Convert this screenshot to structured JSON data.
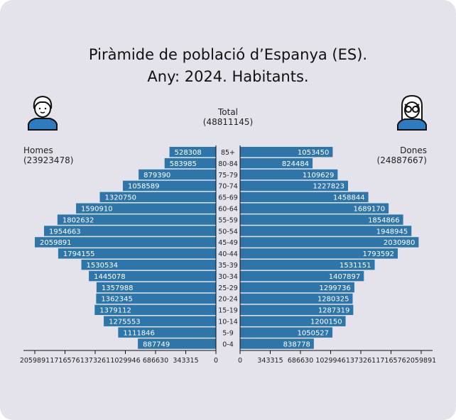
{
  "title_line1": "Piràmide de població d’Espanya (ES).",
  "title_line2": "Any: 2024. Habitants.",
  "total_label": "Total",
  "total_value": "(48811145)",
  "men_label": "Homes",
  "men_total": "(23923478)",
  "women_label": "Dones",
  "women_total": "(24887667)",
  "icons": {
    "men": "boy-avatar-icon",
    "women": "girl-with-glasses-avatar-icon"
  },
  "colors": {
    "bar": "#2e75a9",
    "background": "#e4e3ec"
  },
  "chart_data": {
    "type": "bar",
    "orientation": "horizontal-population-pyramid",
    "categories": [
      "85+",
      "80-84",
      "75-79",
      "70-74",
      "65-69",
      "60-64",
      "55-59",
      "50-54",
      "45-49",
      "40-44",
      "35-39",
      "30-34",
      "25-29",
      "20-24",
      "15-19",
      "10-14",
      "5-9",
      "0-4"
    ],
    "series": [
      {
        "name": "Homes",
        "values": [
          528308,
          583985,
          879390,
          1058589,
          1320750,
          1590910,
          1802632,
          1954663,
          2059891,
          1794155,
          1530534,
          1445078,
          1357988,
          1362345,
          1379112,
          1275553,
          1111846,
          887749
        ]
      },
      {
        "name": "Dones",
        "values": [
          1053450,
          824484,
          1109629,
          1227823,
          1458844,
          1689170,
          1854866,
          1948945,
          2030980,
          1793592,
          1531151,
          1407897,
          1299736,
          1280325,
          1287319,
          1200150,
          1050527,
          838778
        ]
      }
    ],
    "xlim": [
      0,
      2059891
    ],
    "xticks": [
      "0",
      "343315",
      "686630",
      "1029946",
      "1373261",
      "1716576",
      "2059891"
    ],
    "grid": false
  }
}
